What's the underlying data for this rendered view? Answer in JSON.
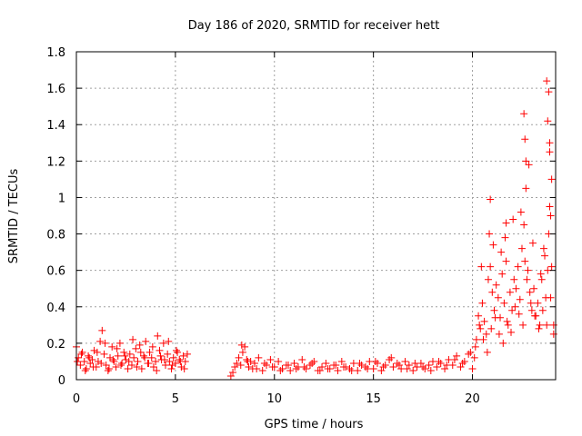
{
  "chart_data": {
    "type": "scatter",
    "title": "Day 186 of 2020, SRMTID for receiver hett",
    "xlabel": "GPS time / hours",
    "ylabel": "SRMTID / TECUs",
    "xlim": [
      0,
      24.2
    ],
    "ylim": [
      0,
      1.8
    ],
    "xticks": [
      0,
      5,
      10,
      15,
      20
    ],
    "xtick_labels": [
      "0",
      "5",
      "10",
      "15",
      "20"
    ],
    "yticks": [
      0,
      0.2,
      0.4,
      0.6,
      0.8,
      1,
      1.2,
      1.4,
      1.6,
      1.8
    ],
    "ytick_labels": [
      "0",
      "0.2",
      "0.4",
      "0.6",
      "0.8",
      "1",
      "1.2",
      "1.4",
      "1.6",
      "1.8"
    ],
    "grid": true,
    "marker": "+",
    "color": "#ff0000",
    "series": [
      {
        "name": "SRMTID",
        "x": [
          0.0,
          0.1,
          0.2,
          0.3,
          0.4,
          0.5,
          0.6,
          0.7,
          0.8,
          0.9,
          1.0,
          1.1,
          1.2,
          1.3,
          1.4,
          1.5,
          1.6,
          1.7,
          1.8,
          1.9,
          2.0,
          2.1,
          2.2,
          2.3,
          2.4,
          2.5,
          2.6,
          2.7,
          2.8,
          2.9,
          3.0,
          3.1,
          3.2,
          3.3,
          3.4,
          3.5,
          3.6,
          3.7,
          3.8,
          3.9,
          4.0,
          4.1,
          4.2,
          4.3,
          4.4,
          4.5,
          4.6,
          4.7,
          4.8,
          4.9,
          5.0,
          5.1,
          5.2,
          5.3,
          5.4,
          5.5,
          5.6,
          0.05,
          0.25,
          0.45,
          0.65,
          0.85,
          1.05,
          1.25,
          1.45,
          1.65,
          1.85,
          2.05,
          2.25,
          2.45,
          2.65,
          2.85,
          3.05,
          3.25,
          3.45,
          3.65,
          3.85,
          4.05,
          4.25,
          4.45,
          4.65,
          4.85,
          5.05,
          5.25,
          5.45,
          7.8,
          7.9,
          8.0,
          8.1,
          8.2,
          8.3,
          8.4,
          8.5,
          8.6,
          8.7,
          8.8,
          8.9,
          9.0,
          9.2,
          9.4,
          9.6,
          9.8,
          10.0,
          10.2,
          10.4,
          10.6,
          10.8,
          11.0,
          11.2,
          11.4,
          11.6,
          11.8,
          12.0,
          12.2,
          12.4,
          12.6,
          12.8,
          13.0,
          13.2,
          13.4,
          13.6,
          13.8,
          14.0,
          14.2,
          14.4,
          14.6,
          14.8,
          15.0,
          15.2,
          15.4,
          15.6,
          15.8,
          16.0,
          16.2,
          16.4,
          16.6,
          16.8,
          17.0,
          17.2,
          17.4,
          17.6,
          17.8,
          18.0,
          18.2,
          18.4,
          18.6,
          18.8,
          19.0,
          19.2,
          19.4,
          19.6,
          19.8,
          20.0,
          8.35,
          8.65,
          9.1,
          9.5,
          9.9,
          10.3,
          10.7,
          11.1,
          11.5,
          11.9,
          12.3,
          12.7,
          13.1,
          13.5,
          13.9,
          14.3,
          14.7,
          15.1,
          15.5,
          15.9,
          16.3,
          16.7,
          17.1,
          17.5,
          17.9,
          18.3,
          18.7,
          19.1,
          19.5,
          19.9,
          20.1,
          20.2,
          20.3,
          20.4,
          20.5,
          20.6,
          20.7,
          20.8,
          20.9,
          21.0,
          21.1,
          21.2,
          21.3,
          21.4,
          21.5,
          21.6,
          21.7,
          21.8,
          21.9,
          22.0,
          22.1,
          22.2,
          22.3,
          22.4,
          22.5,
          22.6,
          22.7,
          22.8,
          22.9,
          23.0,
          23.1,
          23.2,
          23.3,
          23.4,
          23.5,
          23.6,
          23.7,
          23.8,
          23.9,
          24.0,
          24.1,
          20.15,
          20.35,
          20.55,
          20.75,
          20.95,
          21.15,
          21.35,
          21.55,
          21.75,
          21.95,
          22.15,
          22.35,
          22.55,
          22.75,
          22.95,
          23.15,
          23.35,
          23.55,
          23.75,
          23.95,
          24.1,
          20.45,
          20.85,
          21.05,
          21.45,
          21.65,
          22.05,
          22.45,
          22.65,
          22.85,
          23.05,
          23.45,
          23.65,
          23.85,
          23.9,
          24.0,
          20.9,
          21.7,
          22.6,
          22.65,
          22.7,
          23.75,
          23.8,
          23.85,
          23.9,
          23.95
        ],
        "y": [
          0.18,
          0.12,
          0.08,
          0.15,
          0.1,
          0.06,
          0.13,
          0.09,
          0.11,
          0.16,
          0.07,
          0.1,
          0.21,
          0.27,
          0.14,
          0.08,
          0.05,
          0.12,
          0.18,
          0.1,
          0.07,
          0.13,
          0.2,
          0.09,
          0.15,
          0.11,
          0.06,
          0.14,
          0.08,
          0.12,
          0.17,
          0.1,
          0.19,
          0.06,
          0.13,
          0.21,
          0.09,
          0.15,
          0.12,
          0.07,
          0.1,
          0.24,
          0.16,
          0.11,
          0.2,
          0.08,
          0.14,
          0.1,
          0.06,
          0.12,
          0.09,
          0.15,
          0.11,
          0.07,
          0.13,
          0.1,
          0.14,
          0.1,
          0.14,
          0.05,
          0.12,
          0.07,
          0.15,
          0.09,
          0.2,
          0.06,
          0.11,
          0.17,
          0.08,
          0.13,
          0.1,
          0.22,
          0.07,
          0.15,
          0.12,
          0.09,
          0.18,
          0.05,
          0.13,
          0.11,
          0.21,
          0.08,
          0.16,
          0.1,
          0.06,
          0.02,
          0.04,
          0.07,
          0.09,
          0.12,
          0.08,
          0.15,
          0.18,
          0.11,
          0.07,
          0.1,
          0.06,
          0.09,
          0.12,
          0.05,
          0.08,
          0.11,
          0.07,
          0.1,
          0.06,
          0.08,
          0.05,
          0.09,
          0.07,
          0.11,
          0.06,
          0.08,
          0.1,
          0.05,
          0.07,
          0.09,
          0.06,
          0.08,
          0.05,
          0.1,
          0.07,
          0.06,
          0.09,
          0.05,
          0.08,
          0.07,
          0.1,
          0.06,
          0.09,
          0.05,
          0.08,
          0.11,
          0.07,
          0.09,
          0.06,
          0.1,
          0.08,
          0.05,
          0.07,
          0.09,
          0.06,
          0.08,
          0.1,
          0.07,
          0.09,
          0.06,
          0.11,
          0.08,
          0.13,
          0.07,
          0.1,
          0.14,
          0.06,
          0.19,
          0.1,
          0.06,
          0.09,
          0.07,
          0.05,
          0.08,
          0.06,
          0.07,
          0.09,
          0.05,
          0.06,
          0.08,
          0.07,
          0.05,
          0.09,
          0.06,
          0.1,
          0.07,
          0.12,
          0.08,
          0.06,
          0.09,
          0.07,
          0.05,
          0.1,
          0.08,
          0.11,
          0.09,
          0.15,
          0.12,
          0.22,
          0.35,
          0.28,
          0.42,
          0.32,
          0.25,
          0.55,
          0.62,
          0.48,
          0.38,
          0.52,
          0.45,
          0.34,
          0.58,
          0.42,
          0.65,
          0.3,
          0.48,
          0.38,
          0.55,
          0.5,
          0.62,
          0.44,
          0.72,
          0.85,
          1.05,
          0.6,
          0.48,
          0.38,
          0.5,
          0.35,
          0.42,
          0.3,
          0.55,
          0.72,
          0.45,
          0.6,
          0.95,
          0.62,
          0.3,
          0.18,
          0.3,
          0.22,
          0.15,
          0.28,
          0.34,
          0.25,
          0.2,
          0.32,
          0.26,
          0.4,
          0.36,
          0.3,
          0.55,
          0.42,
          0.35,
          0.28,
          0.38,
          0.3,
          0.45,
          0.25,
          0.62,
          0.8,
          0.74,
          0.7,
          0.78,
          0.88,
          0.92,
          0.65,
          1.18,
          0.75,
          0.58,
          0.68,
          0.8,
          1.3,
          1.1,
          0.99,
          0.86,
          1.46,
          1.32,
          1.2,
          1.64,
          1.42,
          1.58,
          1.25,
          0.9
        ]
      }
    ]
  }
}
